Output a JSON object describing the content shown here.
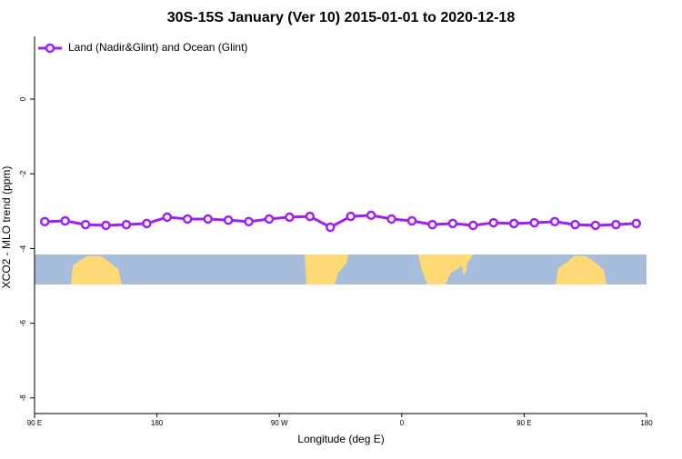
{
  "chart_data": {
    "type": "line",
    "title": "30S-15S January (Ver 10)   2015-01-01 to 2020-12-18",
    "x_label": "Longitude (deg E)",
    "y_label": "XCO2 - MLO trend (ppm)",
    "x": [
      97.5,
      112.5,
      127.5,
      142.5,
      157.5,
      172.5,
      187.5,
      202.5,
      217.5,
      232.5,
      247.5,
      262.5,
      277.5,
      292.5,
      307.5,
      322.5,
      337.5,
      352.5,
      367.5,
      382.5,
      397.5,
      412.5,
      427.5,
      442.5,
      457.5,
      472.5,
      487.5,
      502.5,
      517.5,
      532.5
    ],
    "series": [
      {
        "name": "Land (Nadir&Glint) and Ocean (Glint)",
        "color": "#a020f0",
        "values": [
          -3.28,
          -3.26,
          -3.36,
          -3.38,
          -3.36,
          -3.33,
          -3.16,
          -3.21,
          -3.21,
          -3.24,
          -3.28,
          -3.21,
          -3.16,
          -3.14,
          -3.43,
          -3.14,
          -3.11,
          -3.21,
          -3.26,
          -3.36,
          -3.33,
          -3.38,
          -3.31,
          -3.33,
          -3.31,
          -3.28,
          -3.36,
          -3.38,
          -3.36,
          -3.33
        ]
      }
    ],
    "xlim": [
      90,
      540
    ],
    "xticks": [
      {
        "value": 90,
        "label": "90 E"
      },
      180,
      {
        "value": 270,
        "label": "90 W"
      },
      {
        "value": 360,
        "label": "0"
      },
      {
        "value": 450,
        "label": "90 E"
      },
      {
        "value": 540,
        "label": "180"
      }
    ],
    "ylim": [
      -8.54,
      1.68
    ],
    "yticks": [
      0,
      -2,
      -4,
      -6,
      -8
    ],
    "legend": "top-left"
  }
}
